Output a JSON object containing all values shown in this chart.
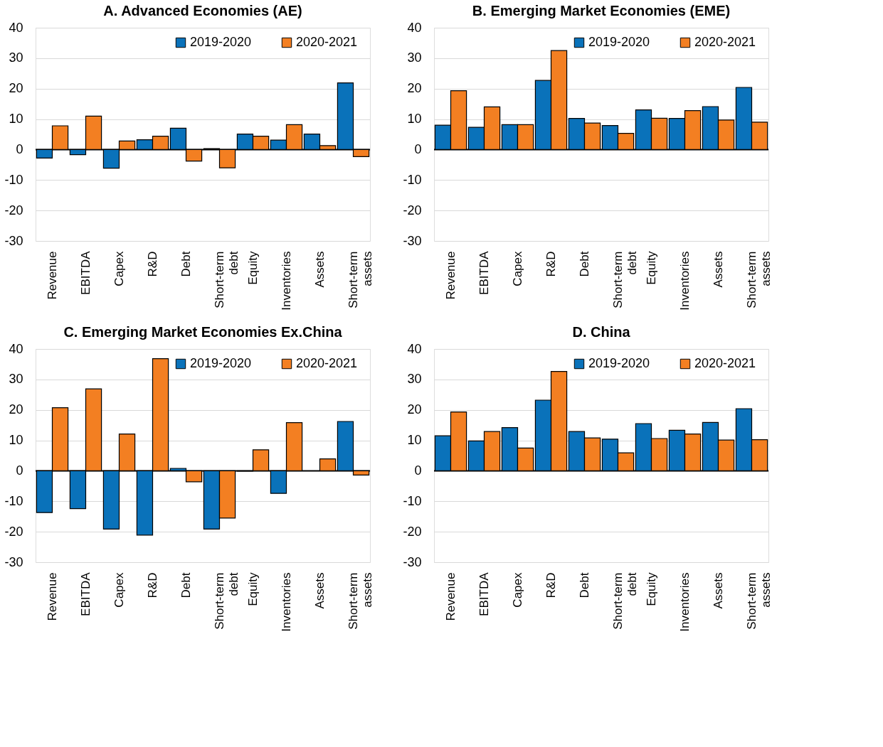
{
  "chart_data": [
    {
      "type": "bar",
      "title": "A. Advanced Economies (AE)",
      "categories": [
        "Revenue",
        "EBITDA",
        "Capex",
        "R&D",
        "Debt",
        "Short-term debt",
        "Equity",
        "Inventories",
        "Assets",
        "Short-term assets"
      ],
      "series": [
        {
          "name": "2019-2020",
          "color": "#0a72ba",
          "values": [
            -2.8,
            -1.7,
            -6.1,
            3.2,
            7,
            0.3,
            5.1,
            3.1,
            5.1,
            21.9
          ]
        },
        {
          "name": "2020-2021",
          "color": "#f37f22",
          "values": [
            7.8,
            11,
            2.8,
            4.4,
            -3.8,
            -6,
            4.4,
            8.2,
            1.3,
            -2.3
          ]
        }
      ],
      "ylim": [
        -30,
        40
      ],
      "yticks": [
        -30,
        -20,
        -10,
        0,
        10,
        20,
        30,
        40
      ],
      "grid": "y",
      "legend": "top right"
    },
    {
      "type": "bar",
      "title": "B. Emerging Market Economies (EME)",
      "categories": [
        "Revenue",
        "EBITDA",
        "Capex",
        "R&D",
        "Debt",
        "Short-term debt",
        "Equity",
        "Inventories",
        "Assets",
        "Short-term assets"
      ],
      "series": [
        {
          "name": "2019-2020",
          "color": "#0a72ba",
          "values": [
            8,
            7.3,
            8.2,
            22.7,
            10.2,
            7.9,
            13,
            10.2,
            14.1,
            20.4
          ]
        },
        {
          "name": "2020-2021",
          "color": "#f37f22",
          "values": [
            19.3,
            14,
            8.2,
            32.5,
            8.7,
            5.3,
            10.3,
            12.8,
            9.7,
            9
          ]
        }
      ],
      "ylim": [
        -30,
        40
      ],
      "yticks": [
        -30,
        -20,
        -10,
        0,
        10,
        20,
        30,
        40
      ],
      "grid": "y",
      "legend": "top right"
    },
    {
      "type": "bar",
      "title": "C. Emerging Market Economies Ex.China",
      "categories": [
        "Revenue",
        "EBITDA",
        "Capex",
        "R&D",
        "Debt",
        "Short-term debt",
        "Equity",
        "Inventories",
        "Assets",
        "Short-term assets"
      ],
      "series": [
        {
          "name": "2019-2020",
          "color": "#0a72ba",
          "values": [
            -13.7,
            -12.4,
            -19.1,
            -21.1,
            0.8,
            -19.1,
            -0.1,
            -7.4,
            null,
            16.2
          ]
        },
        {
          "name": "2020-2021",
          "color": "#f37f22",
          "values": [
            20.7,
            26.9,
            12.1,
            36.8,
            -3.6,
            -15.5,
            6.9,
            15.8,
            3.9,
            -1.4
          ]
        }
      ],
      "ylim": [
        -30,
        40
      ],
      "yticks": [
        -30,
        -20,
        -10,
        0,
        10,
        20,
        30,
        40
      ],
      "grid": "y",
      "legend": "top right"
    },
    {
      "type": "bar",
      "title": "D. China",
      "categories": [
        "Revenue",
        "EBITDA",
        "Capex",
        "R&D",
        "Debt",
        "Short-term debt",
        "Equity",
        "Inventories",
        "Assets",
        "Short-term assets"
      ],
      "series": [
        {
          "name": "2019-2020",
          "color": "#0a72ba",
          "values": [
            11.5,
            9.8,
            14.2,
            23.2,
            12.9,
            10.4,
            15.5,
            13.3,
            15.9,
            20.4
          ]
        },
        {
          "name": "2020-2021",
          "color": "#f37f22",
          "values": [
            19.3,
            12.9,
            7.5,
            32.6,
            10.8,
            5.9,
            10.6,
            12.1,
            10.1,
            10.2
          ]
        }
      ],
      "ylim": [
        -30,
        40
      ],
      "yticks": [
        -30,
        -20,
        -10,
        0,
        10,
        20,
        30,
        40
      ],
      "grid": "y",
      "legend": "top right"
    }
  ]
}
